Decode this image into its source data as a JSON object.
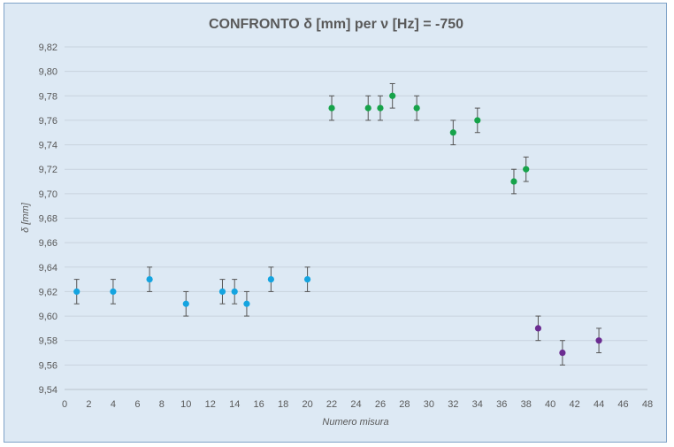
{
  "chart_data": {
    "type": "scatter",
    "title": "CONFRONTO δ [mm] per ν [Hz] = -750",
    "xlabel": "Numero misura",
    "ylabel": "δ [mm]",
    "xlim": [
      0,
      48
    ],
    "ylim": [
      9.54,
      9.82
    ],
    "x_ticks": [
      0,
      2,
      4,
      6,
      8,
      10,
      12,
      14,
      16,
      18,
      20,
      22,
      24,
      26,
      28,
      30,
      32,
      34,
      36,
      38,
      40,
      42,
      44,
      46,
      48
    ],
    "y_ticks": [
      "9,54",
      "9,56",
      "9,58",
      "9,60",
      "9,62",
      "9,64",
      "9,66",
      "9,68",
      "9,70",
      "9,72",
      "9,74",
      "9,76",
      "9,78",
      "9,80",
      "9,82"
    ],
    "grid": true,
    "legend": "none",
    "error": 0.01,
    "series": [
      {
        "color": "#14a4e0",
        "x": [
          1,
          4,
          7,
          10,
          13,
          14,
          15,
          17,
          20
        ],
        "y": [
          9.62,
          9.62,
          9.63,
          9.61,
          9.62,
          9.62,
          9.61,
          9.63,
          9.63
        ]
      },
      {
        "color": "#16a34a",
        "x": [
          22,
          25,
          26,
          27,
          29,
          32,
          34,
          37,
          38
        ],
        "y": [
          9.77,
          9.77,
          9.77,
          9.78,
          9.77,
          9.75,
          9.76,
          9.71,
          9.72
        ]
      },
      {
        "color": "#6b2c91",
        "x": [
          39,
          41,
          44
        ],
        "y": [
          9.59,
          9.57,
          9.58
        ]
      }
    ]
  }
}
